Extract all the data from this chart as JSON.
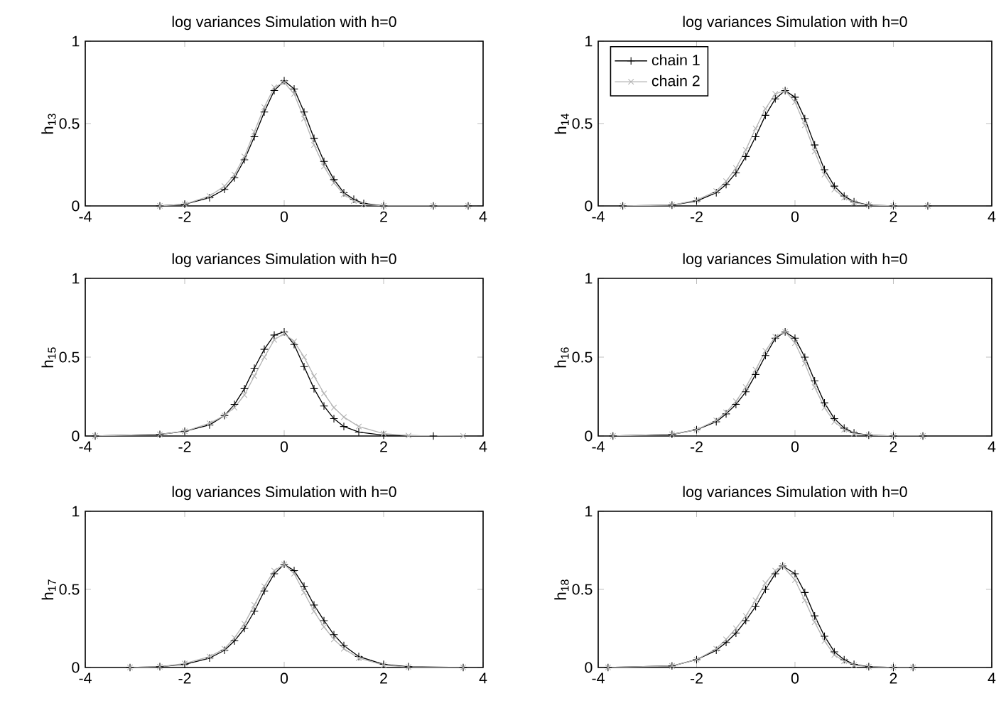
{
  "chart_data": [
    {
      "type": "line",
      "title": "log variances Simulation with h=0",
      "ylabel": "h$_{13}$",
      "xlim": [
        -4,
        4
      ],
      "ylim": [
        0,
        1
      ],
      "xticks": [
        -4,
        -2,
        0,
        2,
        4
      ],
      "yticks": [
        0,
        0.5,
        1
      ],
      "line_style": "solid",
      "series": [
        {
          "color": "#000000",
          "marker": "plus",
          "x": [
            -2.5,
            -2,
            -1.5,
            -1.2,
            -1,
            -0.8,
            -0.6,
            -0.4,
            -0.2,
            0,
            0.2,
            0.4,
            0.6,
            0.8,
            1,
            1.2,
            1.4,
            1.6,
            2,
            3,
            3.7
          ],
          "values": [
            0,
            0.01,
            0.05,
            0.1,
            0.17,
            0.28,
            0.42,
            0.57,
            0.7,
            0.76,
            0.71,
            0.57,
            0.41,
            0.27,
            0.16,
            0.08,
            0.04,
            0.015,
            0,
            0,
            0
          ]
        },
        {
          "color": "#b4b4b4",
          "marker": "cross",
          "x": [
            -2.5,
            -2,
            -1.5,
            -1.2,
            -1,
            -0.8,
            -0.6,
            -0.4,
            -0.2,
            0,
            0.2,
            0.4,
            0.6,
            0.8,
            1,
            1.2,
            1.4,
            1.6,
            2,
            3,
            3.7
          ],
          "values": [
            0,
            0.01,
            0.06,
            0.12,
            0.19,
            0.3,
            0.45,
            0.6,
            0.72,
            0.75,
            0.68,
            0.53,
            0.37,
            0.24,
            0.14,
            0.07,
            0.03,
            0.01,
            0,
            0,
            0
          ]
        }
      ]
    },
    {
      "type": "line",
      "title": "log variances Simulation with h=0",
      "ylabel": "h$_{14}$",
      "xlim": [
        -4,
        4
      ],
      "ylim": [
        0,
        1
      ],
      "xticks": [
        -4,
        -2,
        0,
        2,
        4
      ],
      "yticks": [
        0,
        0.5,
        1
      ],
      "line_style": "solid",
      "legend": "top left",
      "series": [
        {
          "name": "chain 1",
          "color": "#000000",
          "marker": "plus",
          "x": [
            -3.5,
            -2.5,
            -2,
            -1.6,
            -1.4,
            -1.2,
            -1,
            -0.8,
            -0.6,
            -0.4,
            -0.2,
            0,
            0.2,
            0.4,
            0.6,
            0.8,
            1,
            1.2,
            1.5,
            2,
            2.7
          ],
          "values": [
            0,
            0.005,
            0.03,
            0.08,
            0.13,
            0.2,
            0.3,
            0.42,
            0.55,
            0.65,
            0.7,
            0.66,
            0.53,
            0.37,
            0.22,
            0.12,
            0.06,
            0.025,
            0.005,
            0,
            0
          ]
        },
        {
          "name": "chain 2",
          "color": "#b4b4b4",
          "marker": "cross",
          "x": [
            -3.5,
            -2.5,
            -2,
            -1.6,
            -1.4,
            -1.2,
            -1,
            -0.8,
            -0.6,
            -0.4,
            -0.2,
            0,
            0.2,
            0.4,
            0.6,
            0.8,
            1,
            1.2,
            1.5,
            2,
            2.7
          ],
          "values": [
            0,
            0.005,
            0.035,
            0.09,
            0.15,
            0.23,
            0.34,
            0.47,
            0.59,
            0.68,
            0.7,
            0.63,
            0.49,
            0.33,
            0.19,
            0.1,
            0.05,
            0.02,
            0.005,
            0,
            0
          ]
        }
      ]
    },
    {
      "type": "line",
      "title": "log variances Simulation with h=0",
      "ylabel": "h$_{15}$",
      "xlim": [
        -4,
        4
      ],
      "ylim": [
        0,
        1
      ],
      "xticks": [
        -4,
        -2,
        0,
        2,
        4
      ],
      "yticks": [
        0,
        0.5,
        1
      ],
      "line_style": "solid",
      "series": [
        {
          "color": "#000000",
          "marker": "plus",
          "x": [
            -3.8,
            -2.5,
            -2,
            -1.5,
            -1.2,
            -1,
            -0.8,
            -0.6,
            -0.4,
            -0.2,
            0,
            0.2,
            0.4,
            0.6,
            0.8,
            1,
            1.2,
            1.5,
            2,
            3
          ],
          "values": [
            0,
            0.01,
            0.03,
            0.07,
            0.13,
            0.2,
            0.3,
            0.43,
            0.55,
            0.64,
            0.66,
            0.58,
            0.44,
            0.3,
            0.19,
            0.11,
            0.06,
            0.025,
            0.005,
            0
          ]
        },
        {
          "color": "#b4b4b4",
          "marker": "cross",
          "x": [
            -3.8,
            -2.5,
            -2,
            -1.5,
            -1.2,
            -1,
            -0.8,
            -0.6,
            -0.4,
            -0.2,
            0,
            0.2,
            0.4,
            0.6,
            0.8,
            1,
            1.2,
            1.5,
            2,
            2.5,
            3.6
          ],
          "values": [
            0,
            0.01,
            0.03,
            0.08,
            0.13,
            0.18,
            0.26,
            0.38,
            0.5,
            0.61,
            0.65,
            0.6,
            0.5,
            0.38,
            0.27,
            0.18,
            0.12,
            0.06,
            0.015,
            0.003,
            0
          ]
        }
      ]
    },
    {
      "type": "line",
      "title": "log variances Simulation with h=0",
      "ylabel": "h$_{16}$",
      "xlim": [
        -4,
        4
      ],
      "ylim": [
        0,
        1
      ],
      "xticks": [
        -4,
        -2,
        0,
        2,
        4
      ],
      "yticks": [
        0,
        0.5,
        1
      ],
      "line_style": "solid",
      "series": [
        {
          "color": "#000000",
          "marker": "plus",
          "x": [
            -3.7,
            -2.5,
            -2,
            -1.6,
            -1.4,
            -1.2,
            -1,
            -0.8,
            -0.6,
            -0.4,
            -0.2,
            0,
            0.2,
            0.4,
            0.6,
            0.8,
            1,
            1.2,
            1.5,
            2,
            2.6
          ],
          "values": [
            0,
            0.01,
            0.04,
            0.09,
            0.14,
            0.2,
            0.28,
            0.39,
            0.51,
            0.62,
            0.66,
            0.62,
            0.5,
            0.35,
            0.21,
            0.11,
            0.05,
            0.02,
            0.005,
            0,
            0
          ]
        },
        {
          "color": "#b4b4b4",
          "marker": "cross",
          "x": [
            -3.7,
            -2.5,
            -2,
            -1.6,
            -1.4,
            -1.2,
            -1,
            -0.8,
            -0.6,
            -0.4,
            -0.2,
            0,
            0.2,
            0.4,
            0.6,
            0.8,
            1,
            1.2,
            1.5,
            2,
            2.6
          ],
          "values": [
            0,
            0.01,
            0.04,
            0.1,
            0.15,
            0.22,
            0.31,
            0.42,
            0.54,
            0.63,
            0.66,
            0.59,
            0.46,
            0.31,
            0.18,
            0.09,
            0.04,
            0.015,
            0.005,
            0,
            0
          ]
        }
      ]
    },
    {
      "type": "line",
      "title": "log variances Simulation with h=0",
      "ylabel": "h$_{17}$",
      "xlim": [
        -4,
        4
      ],
      "ylim": [
        0,
        1
      ],
      "xticks": [
        -4,
        -2,
        0,
        2,
        4
      ],
      "yticks": [
        0,
        0.5,
        1
      ],
      "line_style": "solid",
      "series": [
        {
          "color": "#000000",
          "marker": "plus",
          "x": [
            -3.1,
            -2.5,
            -2,
            -1.5,
            -1.2,
            -1,
            -0.8,
            -0.6,
            -0.4,
            -0.2,
            0,
            0.2,
            0.4,
            0.6,
            0.8,
            1,
            1.2,
            1.5,
            2,
            2.5,
            3.6
          ],
          "values": [
            0,
            0.005,
            0.02,
            0.06,
            0.11,
            0.17,
            0.25,
            0.36,
            0.49,
            0.6,
            0.66,
            0.62,
            0.52,
            0.4,
            0.3,
            0.21,
            0.14,
            0.07,
            0.02,
            0.005,
            0
          ]
        },
        {
          "color": "#b4b4b4",
          "marker": "cross",
          "x": [
            -3.1,
            -2.5,
            -2,
            -1.5,
            -1.2,
            -1,
            -0.8,
            -0.6,
            -0.4,
            -0.2,
            0,
            0.2,
            0.4,
            0.6,
            0.8,
            1,
            1.2,
            1.5,
            2,
            2.5,
            3.6
          ],
          "values": [
            0,
            0.005,
            0.025,
            0.07,
            0.12,
            0.19,
            0.28,
            0.4,
            0.52,
            0.62,
            0.66,
            0.6,
            0.48,
            0.36,
            0.26,
            0.18,
            0.12,
            0.06,
            0.015,
            0.003,
            0
          ]
        }
      ]
    },
    {
      "type": "line",
      "title": "log variances Simulation with h=0",
      "ylabel": "h$_{18}$",
      "xlim": [
        -4,
        4
      ],
      "ylim": [
        0,
        1
      ],
      "xticks": [
        -4,
        -2,
        0,
        2,
        4
      ],
      "yticks": [
        0,
        0.5,
        1
      ],
      "line_style": "solid",
      "series": [
        {
          "color": "#000000",
          "marker": "plus",
          "x": [
            -3.8,
            -2.5,
            -2,
            -1.6,
            -1.4,
            -1.2,
            -1,
            -0.8,
            -0.6,
            -0.4,
            -0.25,
            0,
            0.2,
            0.4,
            0.6,
            0.8,
            1,
            1.2,
            1.5,
            2,
            2.4
          ],
          "values": [
            0,
            0.01,
            0.05,
            0.11,
            0.16,
            0.22,
            0.3,
            0.39,
            0.5,
            0.6,
            0.65,
            0.6,
            0.48,
            0.33,
            0.2,
            0.1,
            0.05,
            0.02,
            0.005,
            0,
            0
          ]
        },
        {
          "color": "#b4b4b4",
          "marker": "cross",
          "x": [
            -3.8,
            -2.5,
            -2,
            -1.6,
            -1.4,
            -1.2,
            -1,
            -0.8,
            -0.6,
            -0.4,
            -0.25,
            0,
            0.2,
            0.4,
            0.6,
            0.8,
            1,
            1.2,
            1.5,
            2,
            2.4
          ],
          "values": [
            0,
            0.01,
            0.05,
            0.12,
            0.18,
            0.25,
            0.33,
            0.43,
            0.54,
            0.62,
            0.65,
            0.56,
            0.43,
            0.29,
            0.17,
            0.08,
            0.04,
            0.015,
            0.005,
            0,
            0
          ]
        }
      ]
    }
  ]
}
